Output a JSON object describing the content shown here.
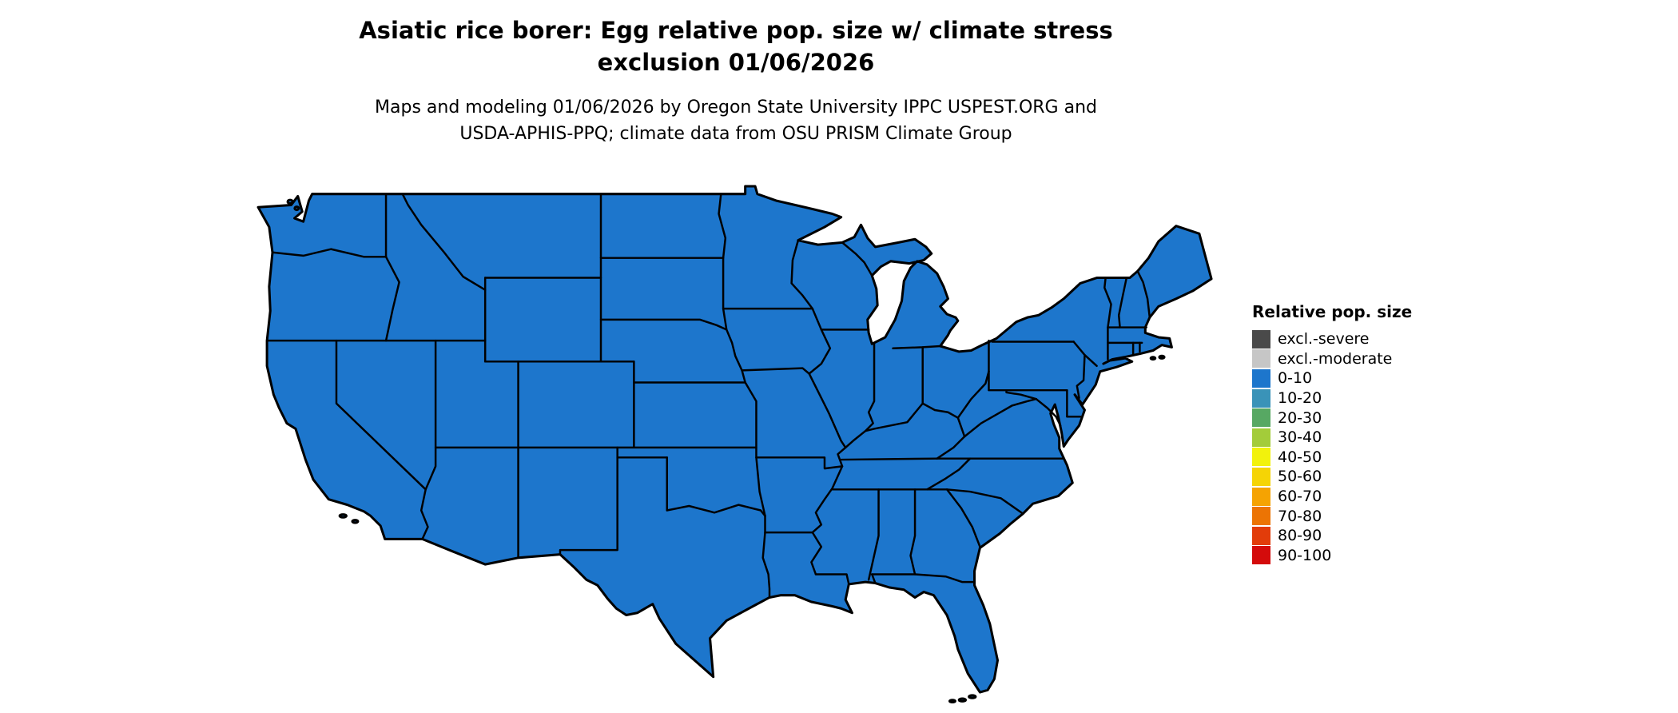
{
  "title": {
    "line1": "Asiatic rice borer: Egg relative pop. size w/ climate stress",
    "line2": "exclusion 01/06/2026"
  },
  "subtitle": {
    "line1": "Maps and modeling 01/06/2026 by Oregon State University IPPC USPEST.ORG and",
    "line2": "USDA-APHIS-PPQ; climate data from OSU PRISM Climate Group"
  },
  "legend": {
    "title": "Relative pop. size",
    "items": [
      {
        "label": "excl.-severe",
        "color": "#4a4a4a"
      },
      {
        "label": "excl.-moderate",
        "color": "#c6c6c6"
      },
      {
        "label": "0-10",
        "color": "#1d76cc"
      },
      {
        "label": "10-20",
        "color": "#3a93b8"
      },
      {
        "label": "20-30",
        "color": "#57a863"
      },
      {
        "label": "30-40",
        "color": "#a3cc3a"
      },
      {
        "label": "40-50",
        "color": "#f2f20c"
      },
      {
        "label": "50-60",
        "color": "#f5d405"
      },
      {
        "label": "60-70",
        "color": "#f5a302"
      },
      {
        "label": "70-80",
        "color": "#ec7404"
      },
      {
        "label": "80-90",
        "color": "#e23c0a"
      },
      {
        "label": "90-100",
        "color": "#d40b0b"
      }
    ]
  },
  "map": {
    "region": "Continental United States",
    "fill_value": "0-10",
    "fill_color": "#1d76cc",
    "border_color": "#000000",
    "note": "All states shaded in the 0-10 relative population size class"
  }
}
